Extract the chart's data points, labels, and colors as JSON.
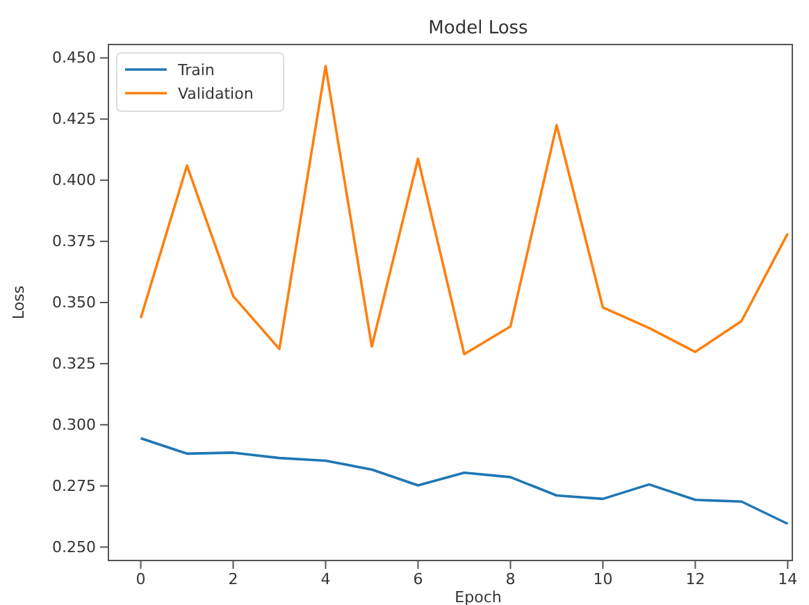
{
  "chart_data": {
    "type": "line",
    "title": "Model Loss",
    "xlabel": "Epoch",
    "ylabel": "Loss",
    "x": [
      0,
      1,
      2,
      3,
      4,
      5,
      6,
      7,
      8,
      9,
      10,
      11,
      12,
      13,
      14
    ],
    "series": [
      {
        "name": "Train",
        "color": "#1f77b4",
        "values": [
          0.2945,
          0.2882,
          0.2886,
          0.2864,
          0.2853,
          0.2817,
          0.2752,
          0.2804,
          0.2786,
          0.2711,
          0.2697,
          0.2756,
          0.2693,
          0.2686,
          0.2595
        ]
      },
      {
        "name": "Validation",
        "color": "#ff7f0e",
        "values": [
          0.3437,
          0.406,
          0.3526,
          0.331,
          0.4467,
          0.332,
          0.4088,
          0.3289,
          0.3402,
          0.4225,
          0.348,
          0.3396,
          0.3298,
          0.3424,
          0.3782
        ]
      }
    ],
    "xlim": [
      -0.7,
      14.1
    ],
    "xticks": [
      0,
      2,
      4,
      6,
      8,
      10,
      12,
      14
    ],
    "ylim": [
      0.2445,
      0.4555
    ],
    "yticks": [
      {
        "value": 0.25,
        "label": "0.250"
      },
      {
        "value": 0.275,
        "label": "0.275"
      },
      {
        "value": 0.3,
        "label": "0.300"
      },
      {
        "value": 0.325,
        "label": "0.325"
      },
      {
        "value": 0.35,
        "label": "0.350"
      },
      {
        "value": 0.375,
        "label": "0.375"
      },
      {
        "value": 0.4,
        "label": "0.400"
      },
      {
        "value": 0.425,
        "label": "0.425"
      },
      {
        "value": 0.45,
        "label": "0.450"
      }
    ],
    "legend": "top left",
    "grid": false,
    "line_style": "solid",
    "marker": "none"
  }
}
